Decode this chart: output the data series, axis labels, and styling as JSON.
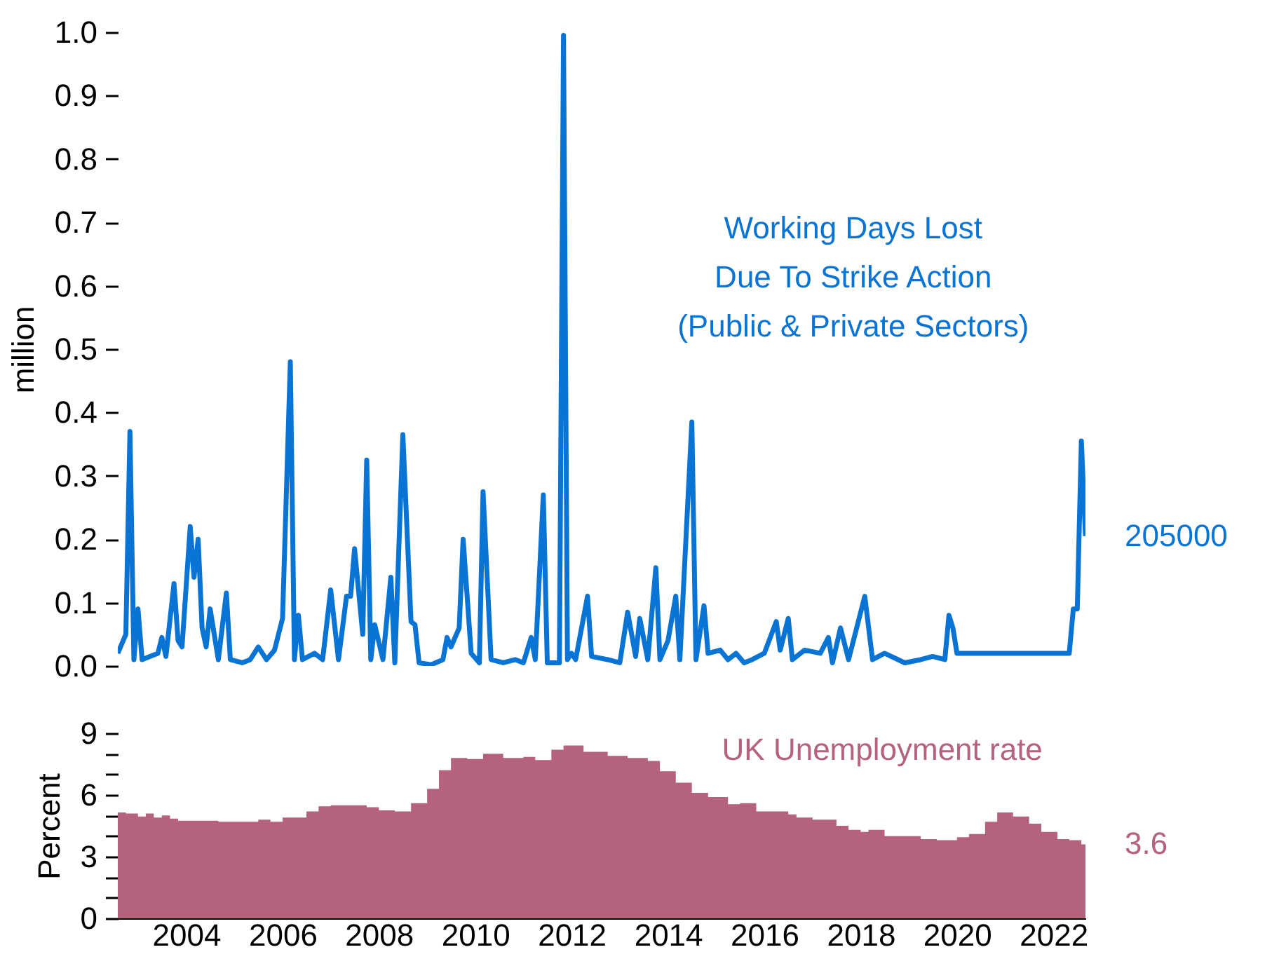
{
  "chart_data": [
    {
      "type": "line",
      "ylabel": "million",
      "xticks": [
        "2004",
        "2006",
        "2008",
        "2010",
        "2012",
        "2014",
        "2016",
        "2018",
        "2020",
        "2022"
      ],
      "ylim": [
        0,
        1.0
      ],
      "yticks": [
        {
          "value": 0,
          "label": "0.0"
        },
        0.1,
        0.2,
        0.3,
        0.4,
        0.5,
        0.6,
        0.7,
        0.8,
        0.9,
        {
          "value": 1,
          "label": "1.0"
        }
      ],
      "tick_labels": "y",
      "grid": false,
      "legend": false,
      "annotations": [
        {
          "text": "205000",
          "x": "2022-09",
          "y": 0.205
        }
      ],
      "series": [
        {
          "name": "Working Days Lost\nDue To Strike Action\n(Public & Private Sectors)",
          "color": "#0a74d4",
          "x": [
            "2002-08",
            "2002-10",
            "2002-11",
            "2002-12",
            "2003-01",
            "2003-02",
            "2003-04",
            "2003-06",
            "2003-07",
            "2003-08",
            "2003-10",
            "2003-11",
            "2003-12",
            "2004-02",
            "2004-03",
            "2004-04",
            "2004-05",
            "2004-06",
            "2004-07",
            "2004-09",
            "2004-11",
            "2004-12",
            "2005-03",
            "2005-05",
            "2005-07",
            "2005-09",
            "2005-11",
            "2006-01",
            "2006-03",
            "2006-04",
            "2006-05",
            "2006-06",
            "2006-09",
            "2006-11",
            "2007-01",
            "2007-03",
            "2007-05",
            "2007-06",
            "2007-07",
            "2007-09",
            "2007-10",
            "2007-11",
            "2007-12",
            "2008-02",
            "2008-04",
            "2008-05",
            "2008-07",
            "2008-09",
            "2008-10",
            "2008-11",
            "2009-02",
            "2009-05",
            "2009-06",
            "2009-07",
            "2009-09",
            "2009-10",
            "2009-12",
            "2010-02",
            "2010-03",
            "2010-05",
            "2010-08",
            "2010-11",
            "2011-01",
            "2011-03",
            "2011-04",
            "2011-06",
            "2011-07",
            "2011-10",
            "2011-11",
            "2011-12",
            "2012-01",
            "2012-02",
            "2012-05",
            "2012-06",
            "2012-10",
            "2013-01",
            "2013-03",
            "2013-05",
            "2013-06",
            "2013-08",
            "2013-10",
            "2013-11",
            "2014-01",
            "2014-03",
            "2014-04",
            "2014-07",
            "2014-08",
            "2014-10",
            "2014-11",
            "2015-02",
            "2015-04",
            "2015-06",
            "2015-08",
            "2015-10",
            "2016-01",
            "2016-04",
            "2016-05",
            "2016-07",
            "2016-08",
            "2016-11",
            "2017-03",
            "2017-05",
            "2017-06",
            "2017-08",
            "2017-10",
            "2018-02",
            "2018-04",
            "2018-07",
            "2018-12",
            "2019-04",
            "2019-07",
            "2019-10",
            "2019-11",
            "2019-12",
            "2020-01",
            "2022-05",
            "2022-06",
            "2022-07",
            "2022-08",
            "2022-09"
          ],
          "values": [
            0.02,
            0.05,
            0.37,
            0.01,
            0.09,
            0.01,
            0.015,
            0.02,
            0.045,
            0.015,
            0.13,
            0.04,
            0.03,
            0.22,
            0.14,
            0.2,
            0.06,
            0.03,
            0.09,
            0.01,
            0.115,
            0.01,
            0.005,
            0.01,
            0.03,
            0.01,
            0.025,
            0.075,
            0.48,
            0.01,
            0.08,
            0.01,
            0.02,
            0.01,
            0.12,
            0.01,
            0.11,
            0.11,
            0.185,
            0.05,
            0.325,
            0.01,
            0.065,
            0.01,
            0.14,
            0.005,
            0.365,
            0.07,
            0.065,
            0.005,
            0.002,
            0.01,
            0.045,
            0.03,
            0.06,
            0.2,
            0.02,
            0.005,
            0.275,
            0.01,
            0.005,
            0.01,
            0.005,
            0.045,
            0.01,
            0.27,
            0.005,
            0.005,
            0.995,
            0.01,
            0.02,
            0.01,
            0.11,
            0.015,
            0.01,
            0.005,
            0.085,
            0.015,
            0.075,
            0.01,
            0.155,
            0.01,
            0.04,
            0.11,
            0.01,
            0.385,
            0.01,
            0.095,
            0.02,
            0.025,
            0.01,
            0.02,
            0.005,
            0.01,
            0.02,
            0.07,
            0.025,
            0.075,
            0.01,
            0.025,
            0.02,
            0.045,
            0.005,
            0.06,
            0.01,
            0.11,
            0.01,
            0.02,
            0.005,
            0.01,
            0.015,
            0.01,
            0.08,
            0.06,
            0.02,
            0.02,
            0.09,
            0.09,
            0.355,
            0.205
          ]
        }
      ]
    },
    {
      "type": "area",
      "ylabel": "Percent",
      "xlim": [
        "2002-08",
        "2022-09"
      ],
      "xticks": [
        "2004",
        "2006",
        "2008",
        "2010",
        "2012",
        "2014",
        "2016",
        "2018",
        "2020",
        "2022"
      ],
      "ylim": [
        0,
        9
      ],
      "yticks": [
        0,
        {
          "value": 1,
          "label": null
        },
        {
          "value": 2,
          "label": null
        },
        3,
        {
          "value": 4,
          "label": null
        },
        {
          "value": 5,
          "label": null
        },
        6,
        {
          "value": 7,
          "label": null
        },
        {
          "value": 8,
          "label": null
        },
        9
      ],
      "grid": false,
      "legend": false,
      "annotations": [
        {
          "text": "3.6",
          "x": "2022-09",
          "y": 3.6
        }
      ],
      "series": [
        {
          "name": "UK Unemployment rate",
          "color": "#b4627f",
          "x": [
            "2002-08",
            "2002-10",
            "2003-01",
            "2003-03",
            "2003-05",
            "2003-07",
            "2003-09",
            "2003-11",
            "2004-03",
            "2004-09",
            "2005-03",
            "2005-07",
            "2005-10",
            "2006-01",
            "2006-07",
            "2006-10",
            "2007-01",
            "2007-07",
            "2007-10",
            "2008-01",
            "2008-05",
            "2008-09",
            "2009-01",
            "2009-04",
            "2009-07",
            "2009-11",
            "2010-03",
            "2010-08",
            "2011-01",
            "2011-04",
            "2011-08",
            "2011-11",
            "2012-04",
            "2012-10",
            "2013-03",
            "2013-08",
            "2013-11",
            "2014-03",
            "2014-07",
            "2014-11",
            "2015-04",
            "2015-07",
            "2015-11",
            "2016-07",
            "2016-09",
            "2017-01",
            "2017-07",
            "2017-10",
            "2018-01",
            "2018-03",
            "2018-07",
            "2019-01",
            "2019-04",
            "2019-08",
            "2020-01",
            "2020-04",
            "2020-08",
            "2020-11",
            "2021-03",
            "2021-07",
            "2021-10",
            "2022-02",
            "2022-05",
            "2022-08",
            "2022-09"
          ],
          "values": [
            5.15,
            5.1,
            4.95,
            5.1,
            4.9,
            5.0,
            4.85,
            4.75,
            4.75,
            4.7,
            4.7,
            4.8,
            4.7,
            4.9,
            5.2,
            5.45,
            5.5,
            5.5,
            5.4,
            5.25,
            5.2,
            5.6,
            6.3,
            7.2,
            7.8,
            7.75,
            8.0,
            7.8,
            7.85,
            7.7,
            8.2,
            8.4,
            8.1,
            7.9,
            7.8,
            7.65,
            7.15,
            6.6,
            6.1,
            5.9,
            5.55,
            5.6,
            5.2,
            5.05,
            4.9,
            4.8,
            4.5,
            4.3,
            4.2,
            4.3,
            4.0,
            4.0,
            3.85,
            3.8,
            3.95,
            4.1,
            4.7,
            5.15,
            4.95,
            4.6,
            4.2,
            3.85,
            3.8,
            3.6,
            3.6
          ]
        }
      ]
    }
  ]
}
